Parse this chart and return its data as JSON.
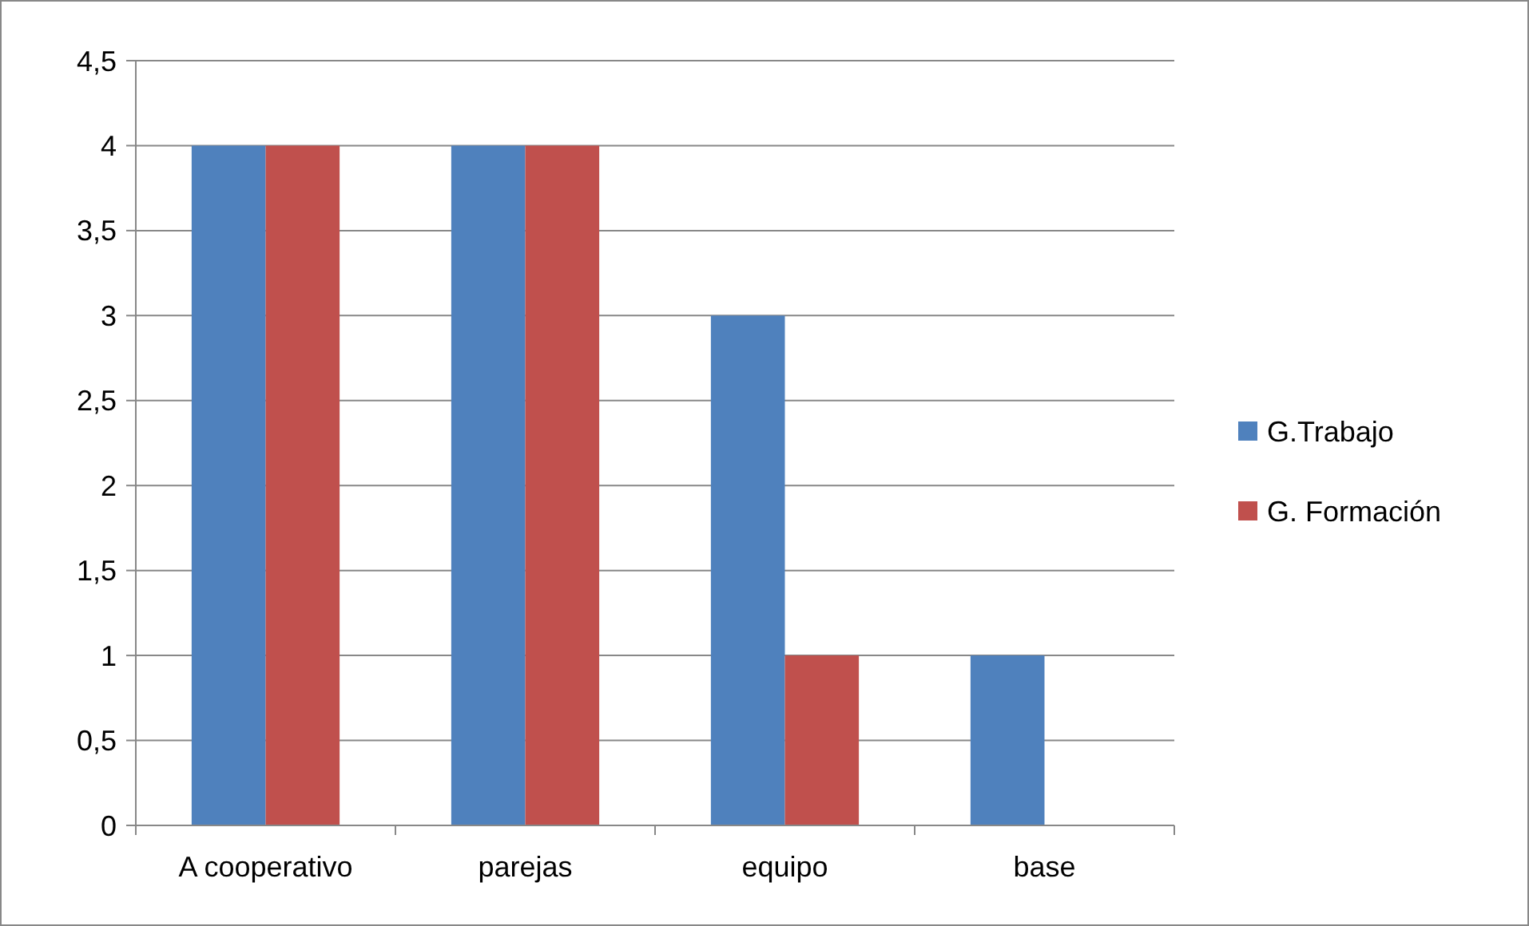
{
  "chart_data": {
    "type": "bar",
    "categories": [
      "A cooperativo",
      "parejas",
      "equipo",
      "base"
    ],
    "series": [
      {
        "name": "G.Trabajo",
        "color": "#4f81bd",
        "values": [
          4,
          4,
          3,
          1
        ]
      },
      {
        "name": "G. Formación",
        "color": "#c0504d",
        "values": [
          4,
          4,
          1,
          0
        ]
      }
    ],
    "ylim": [
      0,
      4.5
    ],
    "yticks": [
      0,
      {
        "value": 0.5,
        "label": "0,5"
      },
      1,
      {
        "value": 1.5,
        "label": "1,5"
      },
      2,
      {
        "value": 2.5,
        "label": "2,5"
      },
      3,
      {
        "value": 3.5,
        "label": "3,5"
      },
      4,
      {
        "value": 4.5,
        "label": "4,5"
      }
    ],
    "grid": "y",
    "legend": "right"
  }
}
